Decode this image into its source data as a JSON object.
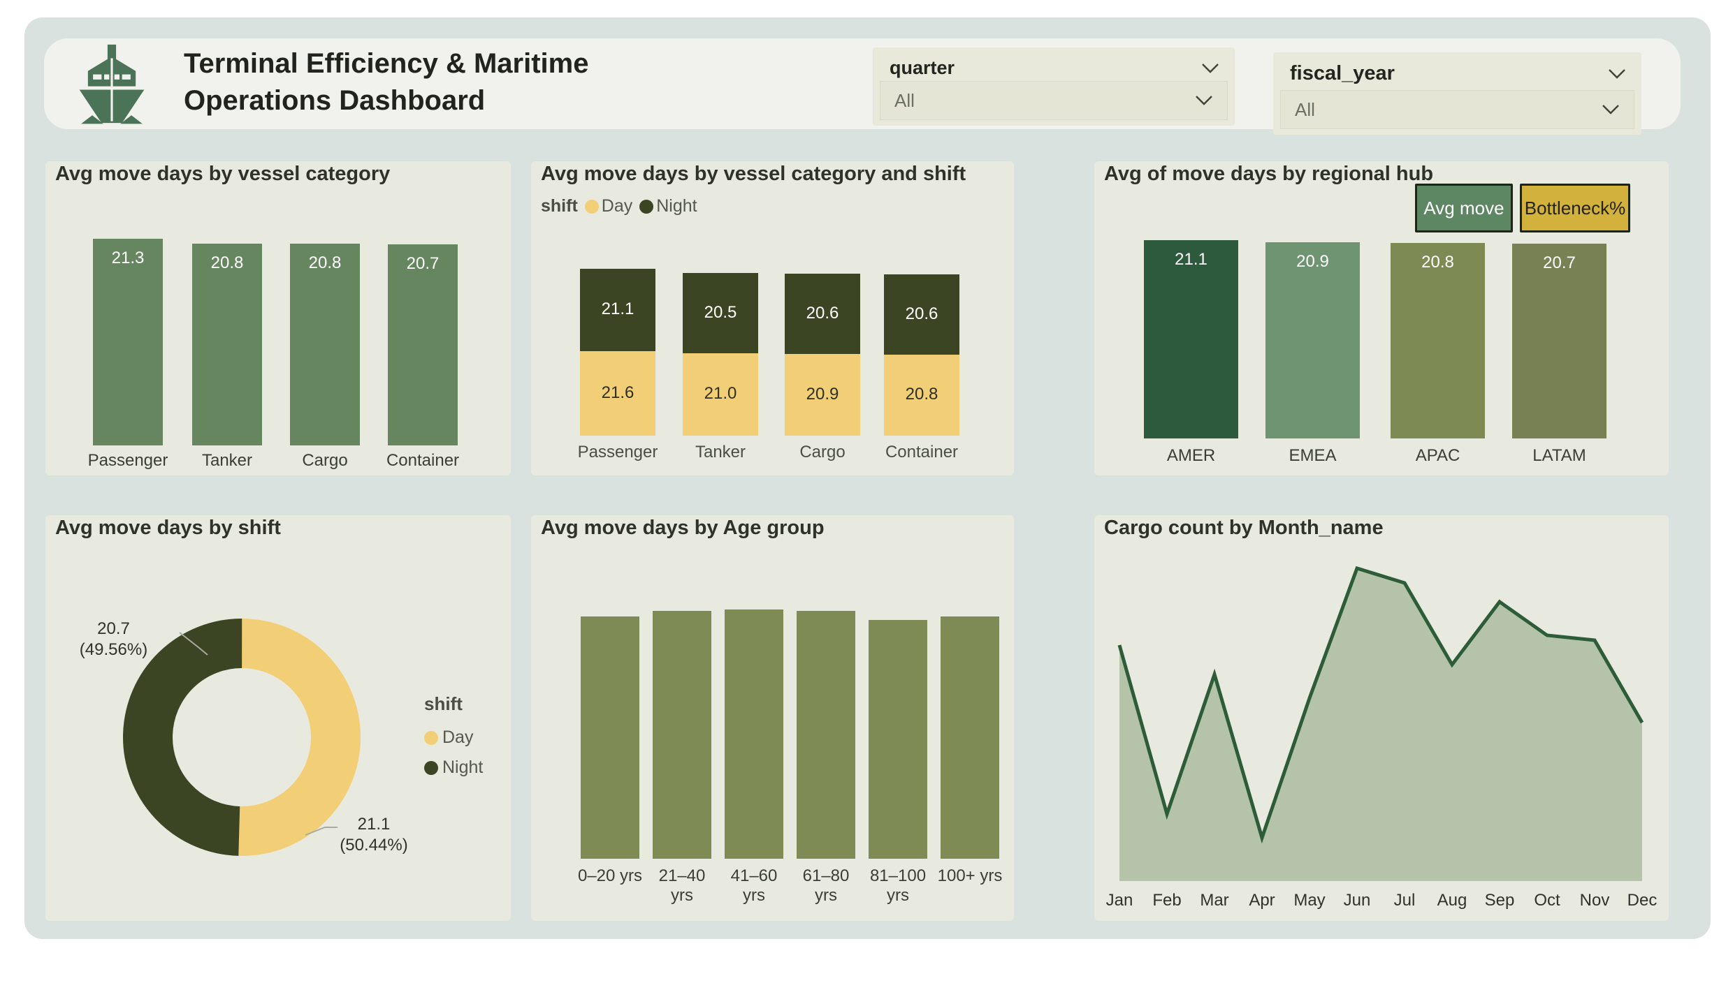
{
  "app": {
    "title_line1": "Terminal Efficiency & Maritime",
    "title_line2": "Operations Dashboard"
  },
  "slicers": {
    "quarter": {
      "field": "quarter",
      "value": "All"
    },
    "fiscal_year": {
      "field": "fiscal_year",
      "value": "All"
    }
  },
  "colors": {
    "canvas": "#d9e2de",
    "card": "#e9eadf",
    "header_card": "#f1f2ed",
    "slicer_panel": "#e8e9da",
    "slicer_box": "#e4e5d4",
    "bar_green": "#66865f",
    "day_yellow": "#f2cf77",
    "night_olive": "#3c4523",
    "age_bar": "#7e8b55",
    "line_green": "#2d5c38",
    "area_fill": "#b5c3ab",
    "btn_green": "#5d8763",
    "btn_gold": "#d2b13d",
    "logo_green": "#4b7357",
    "leader_line": "#a9aaa2"
  },
  "chart_data": [
    {
      "id": "avg-move-days-by-vessel-category",
      "type": "bar",
      "title": "Avg move days by vessel category",
      "categories": [
        "Passenger",
        "Tanker",
        "Cargo",
        "Container"
      ],
      "values": [
        21.3,
        20.8,
        20.8,
        20.7
      ],
      "data_labels": true,
      "grid": false,
      "bar_color": "#66865f"
    },
    {
      "id": "avg-move-days-by-vessel-category-and-shift",
      "type": "stacked-bar",
      "title": "Avg move days by vessel category and shift",
      "legend": {
        "title": "shift",
        "position": "top",
        "entries": [
          {
            "label": "Day",
            "color": "#f2cf77"
          },
          {
            "label": "Night",
            "color": "#3c4523"
          }
        ]
      },
      "categories": [
        "Passenger",
        "Tanker",
        "Cargo",
        "Container"
      ],
      "series": [
        {
          "name": "Day",
          "stack_position": "bottom",
          "color": "#f2cf77",
          "values": [
            21.6,
            21.0,
            20.9,
            20.8
          ]
        },
        {
          "name": "Night",
          "stack_position": "top",
          "color": "#3c4523",
          "values": [
            21.1,
            20.5,
            20.6,
            20.6
          ]
        }
      ],
      "data_labels": true
    },
    {
      "id": "avg-of-move-days-by-regional-hub",
      "type": "bar",
      "title": "Avg of move days by regional hub",
      "buttons": [
        {
          "label": "Avg move",
          "style": "green-selected"
        },
        {
          "label": "Bottleneck%",
          "style": "gold"
        }
      ],
      "categories": [
        "AMER",
        "EMEA",
        "APAC",
        "LATAM"
      ],
      "values": [
        21.1,
        20.9,
        20.8,
        20.7
      ],
      "bar_colors": [
        "#2d5a3d",
        "#6e9471",
        "#7d8a54",
        "#778153"
      ],
      "data_labels": true
    },
    {
      "id": "avg-move-days-by-shift",
      "type": "donut",
      "title": "Avg move days by shift",
      "legend": {
        "title": "shift",
        "position": "right",
        "entries": [
          {
            "label": "Day",
            "color": "#f2cf77"
          },
          {
            "label": "Night",
            "color": "#3c4523"
          }
        ]
      },
      "slices": [
        {
          "name": "Day",
          "value": 21.1,
          "share_pct": 50.44,
          "color": "#f2cf77",
          "callout": [
            "21.1",
            "(50.44%)"
          ]
        },
        {
          "name": "Night",
          "value": 20.7,
          "share_pct": 49.56,
          "color": "#3c4523",
          "callout": [
            "20.7",
            "(49.56%)"
          ]
        }
      ]
    },
    {
      "id": "avg-move-days-by-age-group",
      "type": "bar",
      "title": "Avg move days by Age group",
      "categories": [
        "0–20 yrs",
        "21–40 yrs",
        "41–60 yrs",
        "61–80 yrs",
        "81–100 yrs",
        "100+ yrs"
      ],
      "values_estimated": [
        20.9,
        21.4,
        21.5,
        21.4,
        20.6,
        20.9
      ],
      "data_labels": false,
      "note": "no value labels or axis shown; values estimated from bar heights",
      "bar_color": "#7e8b55"
    },
    {
      "id": "cargo-count-by-month-name",
      "type": "area",
      "title": "Cargo count by Month_name",
      "x": [
        "Jan",
        "Feb",
        "Mar",
        "Apr",
        "May",
        "Jun",
        "Jul",
        "Aug",
        "Sep",
        "Oct",
        "Nov",
        "Dec"
      ],
      "values_estimated": [
        49,
        14,
        43,
        9,
        38,
        65,
        62,
        45,
        58,
        51,
        50,
        33
      ],
      "note": "no y-axis shown; values are relative estimates from line heights",
      "line_color": "#2d5c38",
      "fill_color": "#b5c3ab"
    }
  ]
}
